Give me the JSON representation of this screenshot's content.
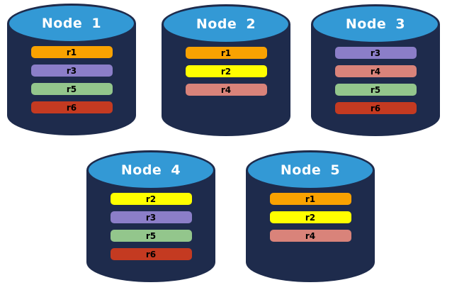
{
  "colors": {
    "cylinder_body": "#1E2B4C",
    "cylinder_top": "#3399D5",
    "node_label_text": "#FFFFFF",
    "bar_label_text": "#000000",
    "replicas": {
      "r1": "#F9A201",
      "r2": "#FFFF00",
      "r3": "#8B7EC8",
      "r4": "#D9837A",
      "r5": "#93C68C",
      "r6": "#C43A21"
    }
  },
  "nodes": [
    {
      "label": "Node 1",
      "replicas": [
        "r1",
        "r3",
        "r5",
        "r6"
      ]
    },
    {
      "label": "Node 2",
      "replicas": [
        "r1",
        "r2",
        "r4"
      ]
    },
    {
      "label": "Node 3",
      "replicas": [
        "r3",
        "r4",
        "r5",
        "r6"
      ]
    },
    {
      "label": "Node 4",
      "replicas": [
        "r2",
        "r3",
        "r5",
        "r6"
      ]
    },
    {
      "label": "Node 5",
      "replicas": [
        "r1",
        "r2",
        "r4"
      ]
    }
  ]
}
